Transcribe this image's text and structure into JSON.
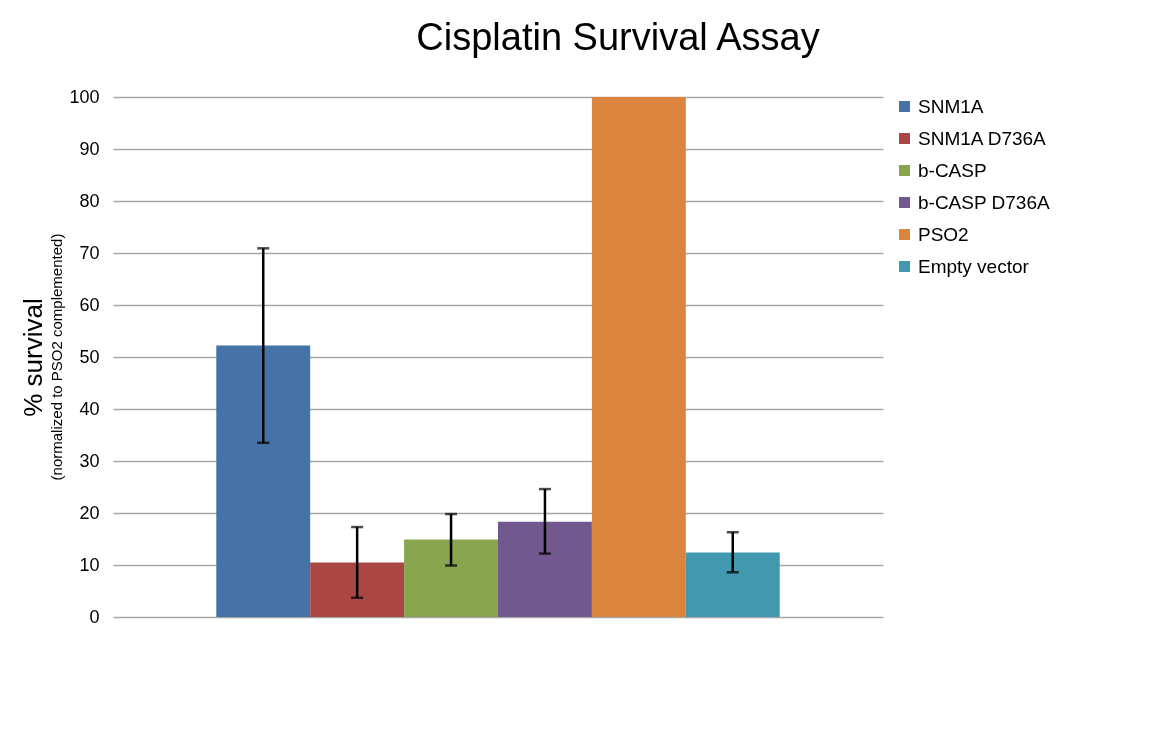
{
  "chart_data": {
    "type": "bar",
    "title": "Cisplatin Survival Assay",
    "ylabel": "% survival",
    "annotations": [
      "(normalized to PSO2 complemented)"
    ],
    "categories": [
      null
    ],
    "series": [
      {
        "name": "SNM1A",
        "color": "#4572a7",
        "values": [
          52.2
        ],
        "errors": [
          [
            33.5,
            70.9
          ]
        ]
      },
      {
        "name": "SNM1A D736A",
        "color": "#aa4643",
        "values": [
          10.5
        ],
        "errors": [
          [
            3.7,
            17.3
          ]
        ]
      },
      {
        "name": "b-CASP",
        "color": "#89a54e",
        "values": [
          14.9
        ],
        "errors": [
          [
            9.9,
            19.8
          ]
        ]
      },
      {
        "name": "b-CASP D736A",
        "color": "#71588f",
        "values": [
          18.3
        ],
        "errors": [
          [
            12.2,
            24.6
          ]
        ]
      },
      {
        "name": "PSO2",
        "color": "#db843d",
        "values": [
          100
        ],
        "errors": [
          null
        ]
      },
      {
        "name": "Empty vector",
        "color": "#4198af",
        "values": [
          12.4
        ],
        "errors": [
          [
            8.6,
            16.3
          ]
        ]
      }
    ],
    "ylim": [
      0,
      100
    ],
    "yticks": [
      0,
      10,
      20,
      30,
      40,
      50,
      60,
      70,
      80,
      90,
      100
    ],
    "grid": "y",
    "legend": "right",
    "tick_labels": "y"
  }
}
